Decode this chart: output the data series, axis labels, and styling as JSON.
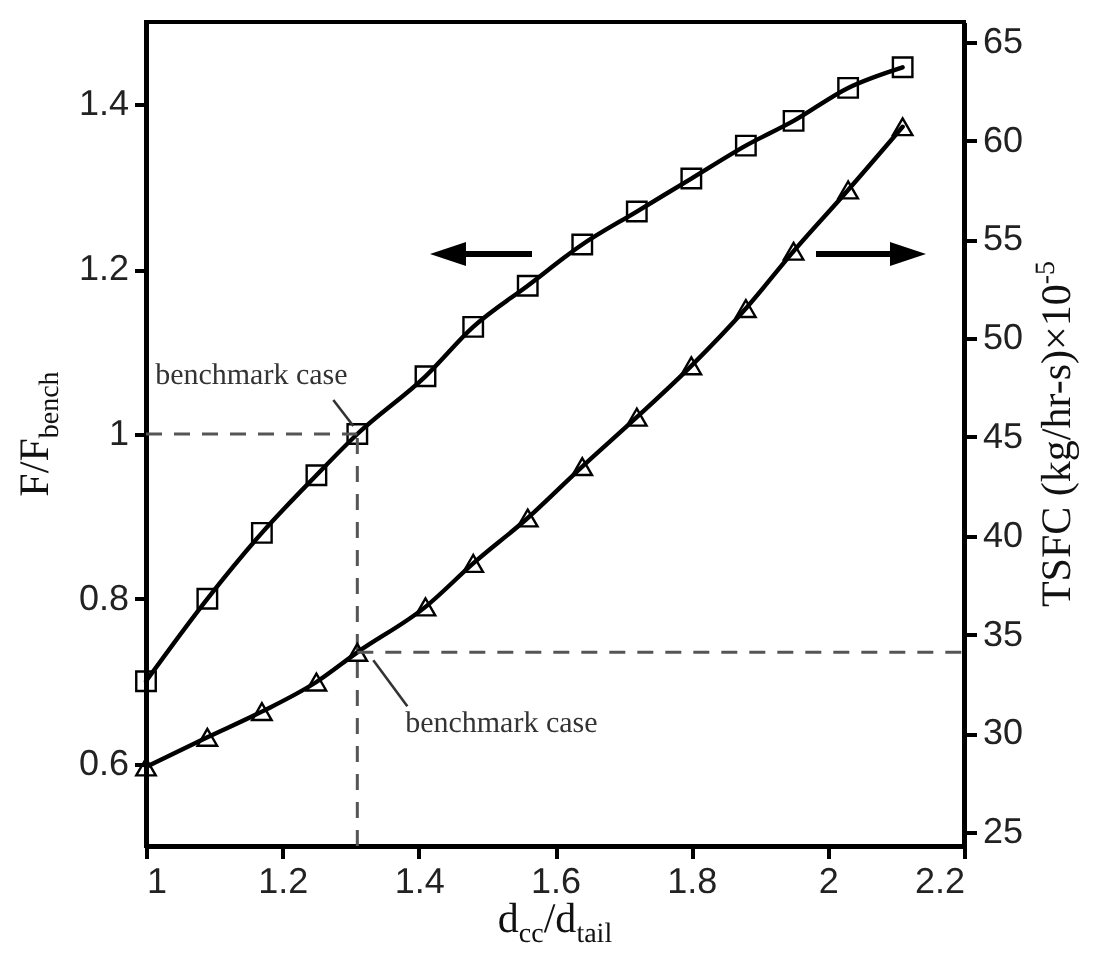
{
  "chart_data": {
    "type": "line",
    "xlabel": "d$_{cc}$/d$_{tail}$",
    "ylabel": "F/F$_{bench}$",
    "y2label": "TSFC (kg/hr-s)×10$^{-5}$",
    "x": [
      1,
      1.09,
      1.17,
      1.25,
      1.31,
      1.41,
      1.48,
      1.56,
      1.64,
      1.72,
      1.8,
      1.88,
      1.95,
      2.03,
      2.11
    ],
    "series": [
      {
        "color": "#000000",
        "marker": "square",
        "values": [
          0.7,
          0.8,
          0.88,
          0.95,
          1.0,
          1.07,
          1.13,
          1.18,
          1.23,
          1.27,
          1.31,
          1.35,
          1.38,
          1.42,
          1.445
        ]
      },
      {
        "color": "#000000",
        "marker": "triangle",
        "axis": "y2",
        "values": [
          28.3,
          29.8,
          31.1,
          32.6,
          34.1,
          36.4,
          38.6,
          40.9,
          43.5,
          46.0,
          48.6,
          51.5,
          54.4,
          57.5,
          60.7
        ]
      }
    ],
    "xlim": [
      1,
      2.2
    ],
    "xticks": [
      1,
      1.2,
      1.4,
      1.6,
      1.8,
      2,
      2.2
    ],
    "ylim": [
      0.5,
      1.5
    ],
    "yticks": [
      0.6,
      0.8,
      1,
      1.2,
      1.4
    ],
    "y2lim": [
      24.3,
      66
    ],
    "y2ticks": [
      25,
      30,
      35,
      40,
      45,
      50,
      55,
      60,
      65
    ],
    "ref_lines": [
      {
        "axis": "x",
        "value": 1.31,
        "color": "#555555",
        "line_style": "dashed"
      },
      {
        "axis": "y",
        "value": 1.0,
        "color": "#555555",
        "line_style": "dashed"
      },
      {
        "axis": "y2",
        "value": 34.1,
        "color": "#555555",
        "line_style": "dashed"
      }
    ],
    "annotations": [
      {
        "text": "benchmark case",
        "x": 1.31,
        "y": 1.0
      },
      {
        "text": "benchmark case",
        "x": 1.31,
        "y": 0.74
      }
    ],
    "line_style": "solid"
  }
}
